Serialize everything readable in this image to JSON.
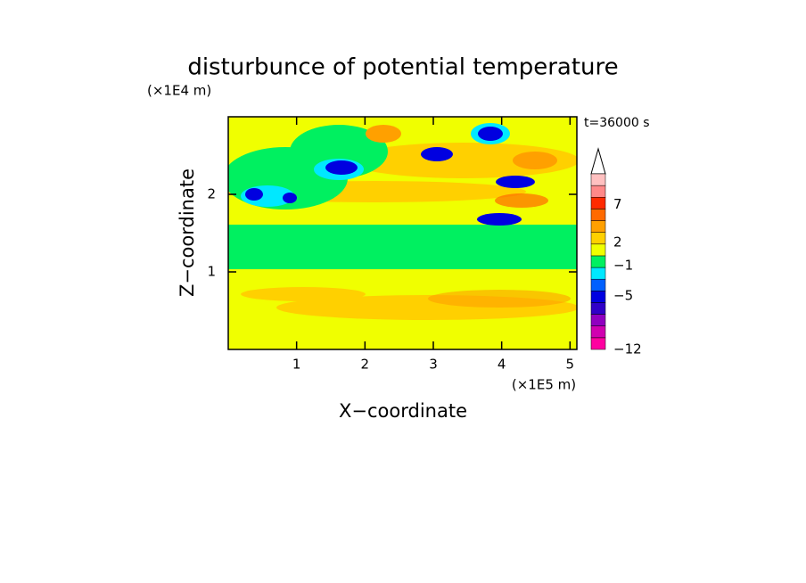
{
  "chart_data": {
    "type": "contour",
    "title": "disturbunce of potential temperature",
    "x_label": "X−coordinate",
    "y_label": "Z−coordinate",
    "x_unit": "(×1E5 m)",
    "y_unit": "(×1E4 m)",
    "annotation": "t=36000 s",
    "xlim": [
      0,
      5.1
    ],
    "xticks": [
      1,
      2,
      3,
      4,
      5
    ],
    "ylim": [
      0,
      3
    ],
    "yticks": [
      1,
      2
    ],
    "colorbar": {
      "clim": [
        -12,
        11
      ],
      "ticks": [
        {
          "value": -12,
          "label": "−12"
        },
        {
          "value": -5,
          "label": "−5"
        },
        {
          "value": -1,
          "label": "−1"
        },
        2,
        7
      ],
      "colors": [
        "#ff00a0",
        "#d000b0",
        "#9000c0",
        "#3000c8",
        "#0000e0",
        "#0060ff",
        "#00e8ff",
        "#00f060",
        "#f0ff00",
        "#ffd000",
        "#ffa000",
        "#ff6a00",
        "#ff2a00",
        "#ff8888",
        "#ffc0c0"
      ]
    }
  }
}
